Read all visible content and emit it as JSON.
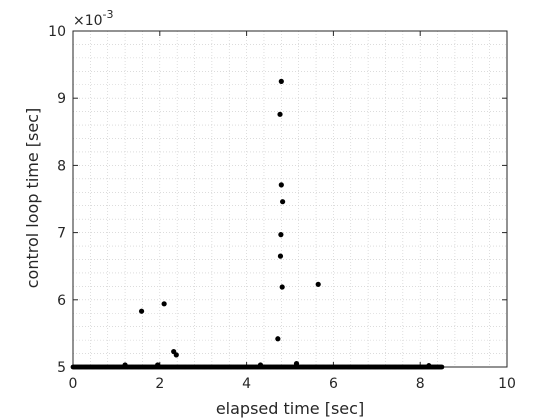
{
  "chart_data": {
    "type": "scatter",
    "xlabel": "elapsed time [sec]",
    "ylabel": "control loop time [sec]",
    "xlim": [
      0,
      10
    ],
    "ylim": [
      5,
      10
    ],
    "x_ticks": [
      0,
      2,
      4,
      6,
      8,
      10
    ],
    "x_tick_labels": [
      "0",
      "2",
      "4",
      "6",
      "8",
      "10"
    ],
    "y_ticks": [
      5,
      6,
      7,
      8,
      9,
      10
    ],
    "y_tick_labels": [
      "5",
      "6",
      "7",
      "8",
      "9",
      "10"
    ],
    "y_exponent_label": "×10",
    "y_exponent_power": "-3",
    "grid": "on (major and minor, dotted)",
    "dense_band": {
      "x_start": 0.0,
      "x_end": 8.5,
      "y": 5.0
    },
    "points": [
      {
        "x": 1.2,
        "y": 5.03
      },
      {
        "x": 1.58,
        "y": 5.83
      },
      {
        "x": 1.95,
        "y": 5.03
      },
      {
        "x": 2.1,
        "y": 5.94
      },
      {
        "x": 2.32,
        "y": 5.23
      },
      {
        "x": 2.38,
        "y": 5.18
      },
      {
        "x": 4.32,
        "y": 5.03
      },
      {
        "x": 4.72,
        "y": 5.42
      },
      {
        "x": 4.77,
        "y": 8.76
      },
      {
        "x": 4.78,
        "y": 6.65
      },
      {
        "x": 4.79,
        "y": 6.97
      },
      {
        "x": 4.8,
        "y": 9.25
      },
      {
        "x": 4.8,
        "y": 7.71
      },
      {
        "x": 4.82,
        "y": 6.19
      },
      {
        "x": 4.83,
        "y": 7.46
      },
      {
        "x": 5.15,
        "y": 5.05
      },
      {
        "x": 5.65,
        "y": 6.23
      },
      {
        "x": 8.2,
        "y": 5.02
      }
    ]
  },
  "colors": {
    "marker": "#000000",
    "axis": "#262626",
    "grid": "#c8c8c8"
  }
}
